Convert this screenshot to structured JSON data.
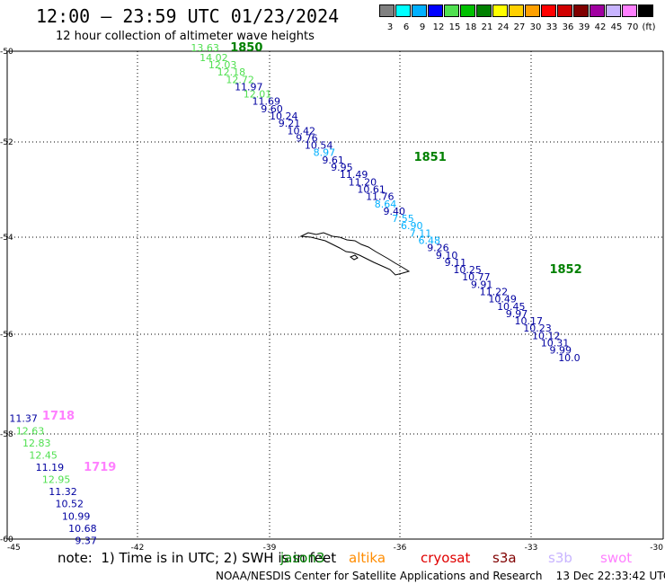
{
  "header": {
    "title": "12:00 – 23:59 UTC 01/23/2024",
    "subtitle": "12 hour collection of altimeter wave heights"
  },
  "colorbar": {
    "colors": [
      "#808080",
      "#00ffff",
      "#00b0ff",
      "#0000ff",
      "#50e050",
      "#00c000",
      "#008000",
      "#ffff00",
      "#ffd000",
      "#ffa000",
      "#ff0000",
      "#d00000",
      "#800000",
      "#a000a0",
      "#c8b4ff",
      "#ff80ff",
      "#000000"
    ],
    "labels": [
      "3",
      "6",
      "9",
      "12",
      "15",
      "18",
      "21",
      "24",
      "27",
      "30",
      "33",
      "36",
      "39",
      "42",
      "45",
      "70",
      "(ft)"
    ]
  },
  "axes": {
    "lon_labels": [
      "-45",
      "-42",
      "-39",
      "-36",
      "-33",
      "-30"
    ],
    "lat_labels": [
      "-50",
      "-52",
      "-54",
      "-56",
      "-58",
      "-60"
    ]
  },
  "chart_data": {
    "type": "scatter",
    "x_range": [
      -45,
      -30
    ],
    "y_range": [
      -60,
      -50
    ],
    "tracks": [
      {
        "name": "1850",
        "label_color": "#008000",
        "label_pos": [
          -39.9,
          -50.0
        ],
        "points": [
          {
            "lon": -40.8,
            "lat": -50.0,
            "v": "13.63",
            "c": "#50e050"
          },
          {
            "lon": -40.6,
            "lat": -50.2,
            "v": "14.02",
            "c": "#50e050"
          },
          {
            "lon": -40.4,
            "lat": -50.35,
            "v": "12.03",
            "c": "#50e050"
          },
          {
            "lon": -40.2,
            "lat": -50.5,
            "v": "12.18",
            "c": "#50e050"
          },
          {
            "lon": -40.0,
            "lat": -50.65,
            "v": "12.72",
            "c": "#50e050"
          },
          {
            "lon": -39.8,
            "lat": -50.8,
            "v": "11.97",
            "c": "#0000a0"
          },
          {
            "lon": -39.6,
            "lat": -50.95,
            "v": "12.01",
            "c": "#50e050"
          },
          {
            "lon": -39.4,
            "lat": -51.1,
            "v": "11.69",
            "c": "#0000a0"
          },
          {
            "lon": -39.2,
            "lat": -51.25,
            "v": "9.60",
            "c": "#0000a0"
          },
          {
            "lon": -39.0,
            "lat": -51.4,
            "v": "10.24",
            "c": "#0000a0"
          },
          {
            "lon": -38.8,
            "lat": -51.55,
            "v": "9.21",
            "c": "#0000a0"
          },
          {
            "lon": -38.6,
            "lat": -51.7,
            "v": "10.42",
            "c": "#0000a0"
          },
          {
            "lon": -38.4,
            "lat": -51.85,
            "v": "9.76",
            "c": "#0000a0"
          },
          {
            "lon": -38.2,
            "lat": -52.0,
            "v": "10.54",
            "c": "#0000a0"
          },
          {
            "lon": -38.0,
            "lat": -52.15,
            "v": "8.97",
            "c": "#00b0ff"
          }
        ]
      },
      {
        "name": "1851",
        "label_color": "#008000",
        "label_pos": [
          -35.7,
          -52.25
        ],
        "points": [
          {
            "lon": -37.8,
            "lat": -52.3,
            "v": "9.61",
            "c": "#0000a0"
          },
          {
            "lon": -37.6,
            "lat": -52.45,
            "v": "9.95",
            "c": "#0000a0"
          },
          {
            "lon": -37.4,
            "lat": -52.6,
            "v": "11.49",
            "c": "#0000a0"
          },
          {
            "lon": -37.2,
            "lat": -52.75,
            "v": "11.20",
            "c": "#0000a0"
          },
          {
            "lon": -37.0,
            "lat": -52.9,
            "v": "10.61",
            "c": "#0000a0"
          },
          {
            "lon": -36.8,
            "lat": -53.05,
            "v": "11.76",
            "c": "#0000a0"
          },
          {
            "lon": -36.6,
            "lat": -53.2,
            "v": "8.64",
            "c": "#00b0ff"
          },
          {
            "lon": -36.4,
            "lat": -53.35,
            "v": "9.40",
            "c": "#0000a0"
          },
          {
            "lon": -36.2,
            "lat": -53.5,
            "v": "7.55",
            "c": "#00b0ff"
          },
          {
            "lon": -36.0,
            "lat": -53.65,
            "v": "6.90",
            "c": "#00b0ff"
          },
          {
            "lon": -35.8,
            "lat": -53.8,
            "v": "7.11",
            "c": "#00b0ff"
          },
          {
            "lon": -35.6,
            "lat": -53.95,
            "v": "6.48",
            "c": "#00b0ff"
          },
          {
            "lon": -35.4,
            "lat": -54.1,
            "v": "9.26",
            "c": "#0000a0"
          },
          {
            "lon": -35.2,
            "lat": -54.25,
            "v": "9.10",
            "c": "#0000a0"
          },
          {
            "lon": -35.0,
            "lat": -54.4,
            "v": "9.11",
            "c": "#0000a0"
          }
        ]
      },
      {
        "name": "1852",
        "label_color": "#008000",
        "label_pos": [
          -32.6,
          -54.55
        ],
        "points": [
          {
            "lon": -34.8,
            "lat": -54.55,
            "v": "10.25",
            "c": "#0000a0"
          },
          {
            "lon": -34.6,
            "lat": -54.7,
            "v": "10.77",
            "c": "#0000a0"
          },
          {
            "lon": -34.4,
            "lat": -54.85,
            "v": "9.91",
            "c": "#0000a0"
          },
          {
            "lon": -34.2,
            "lat": -55.0,
            "v": "11.22",
            "c": "#0000a0"
          },
          {
            "lon": -34.0,
            "lat": -55.15,
            "v": "10.49",
            "c": "#0000a0"
          },
          {
            "lon": -33.8,
            "lat": -55.3,
            "v": "10.45",
            "c": "#0000a0"
          },
          {
            "lon": -33.6,
            "lat": -55.45,
            "v": "9.97",
            "c": "#0000a0"
          },
          {
            "lon": -33.4,
            "lat": -55.6,
            "v": "10.17",
            "c": "#0000a0"
          },
          {
            "lon": -33.2,
            "lat": -55.75,
            "v": "10.23",
            "c": "#0000a0"
          },
          {
            "lon": -33.0,
            "lat": -55.9,
            "v": "10.12",
            "c": "#0000a0"
          },
          {
            "lon": -32.8,
            "lat": -56.05,
            "v": "10.31",
            "c": "#0000a0"
          },
          {
            "lon": -32.6,
            "lat": -56.2,
            "v": "9.99",
            "c": "#0000a0"
          },
          {
            "lon": -32.4,
            "lat": -56.35,
            "v": "10.0",
            "c": "#0000a0"
          }
        ]
      },
      {
        "name": "1718",
        "label_color": "#ff80ff",
        "label_pos": [
          -44.2,
          -57.55
        ],
        "points": [
          {
            "lon": -44.95,
            "lat": -57.6,
            "v": "11.37",
            "c": "#0000a0"
          },
          {
            "lon": -44.8,
            "lat": -57.85,
            "v": "12.63",
            "c": "#50e050"
          },
          {
            "lon": -44.65,
            "lat": -58.1,
            "v": "12.83",
            "c": "#50e050"
          },
          {
            "lon": -44.5,
            "lat": -58.35,
            "v": "12.45",
            "c": "#50e050"
          }
        ]
      },
      {
        "name": "1719",
        "label_color": "#ff80ff",
        "label_pos": [
          -43.25,
          -58.6
        ],
        "points": [
          {
            "lon": -44.35,
            "lat": -58.6,
            "v": "11.19",
            "c": "#0000a0"
          },
          {
            "lon": -44.2,
            "lat": -58.85,
            "v": "12.95",
            "c": "#50e050"
          },
          {
            "lon": -44.05,
            "lat": -59.1,
            "v": "11.32",
            "c": "#0000a0"
          },
          {
            "lon": -43.9,
            "lat": -59.35,
            "v": "10.52",
            "c": "#0000a0"
          },
          {
            "lon": -43.75,
            "lat": -59.6,
            "v": "10.99",
            "c": "#0000a0"
          },
          {
            "lon": -43.6,
            "lat": -59.85,
            "v": "10.68",
            "c": "#0000a0"
          },
          {
            "lon": -43.45,
            "lat": -60.1,
            "v": "9.37",
            "c": "#0000a0"
          }
        ]
      }
    ]
  },
  "footer": {
    "note": "note:  1) Time is in UTC; 2) SWH is in feet",
    "credit": "NOAA/NESDIS Center for Satellite Applications and Research    13 Dec 22:33:42 UTC 2024",
    "satellites": [
      {
        "name": "jason3",
        "color": "#008000"
      },
      {
        "name": "altika",
        "color": "#ff8c00"
      },
      {
        "name": "cryosat",
        "color": "#e00000"
      },
      {
        "name": "s3a",
        "color": "#800000"
      },
      {
        "name": "s3b",
        "color": "#c8b4ff"
      },
      {
        "name": "swot",
        "color": "#ff80ff"
      }
    ]
  }
}
